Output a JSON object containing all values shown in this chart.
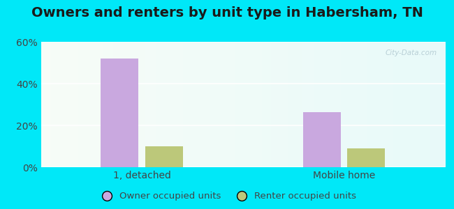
{
  "title": "Owners and renters by unit type in Habersham, TN",
  "categories": [
    "1, detached",
    "Mobile home"
  ],
  "owner_values": [
    52.0,
    26.5
  ],
  "renter_values": [
    10.0,
    9.0
  ],
  "owner_color": "#c9a8df",
  "renter_color": "#bcc87a",
  "ylim": [
    0,
    60
  ],
  "yticks": [
    0,
    20,
    40,
    60
  ],
  "ytick_labels": [
    "0%",
    "20%",
    "40%",
    "60%"
  ],
  "bar_width": 0.28,
  "legend_labels": [
    "Owner occupied units",
    "Renter occupied units"
  ],
  "outer_bg": "#00e8f8",
  "watermark": "City-Data.com",
  "title_fontsize": 14,
  "axis_fontsize": 10,
  "tick_color": "#444444"
}
